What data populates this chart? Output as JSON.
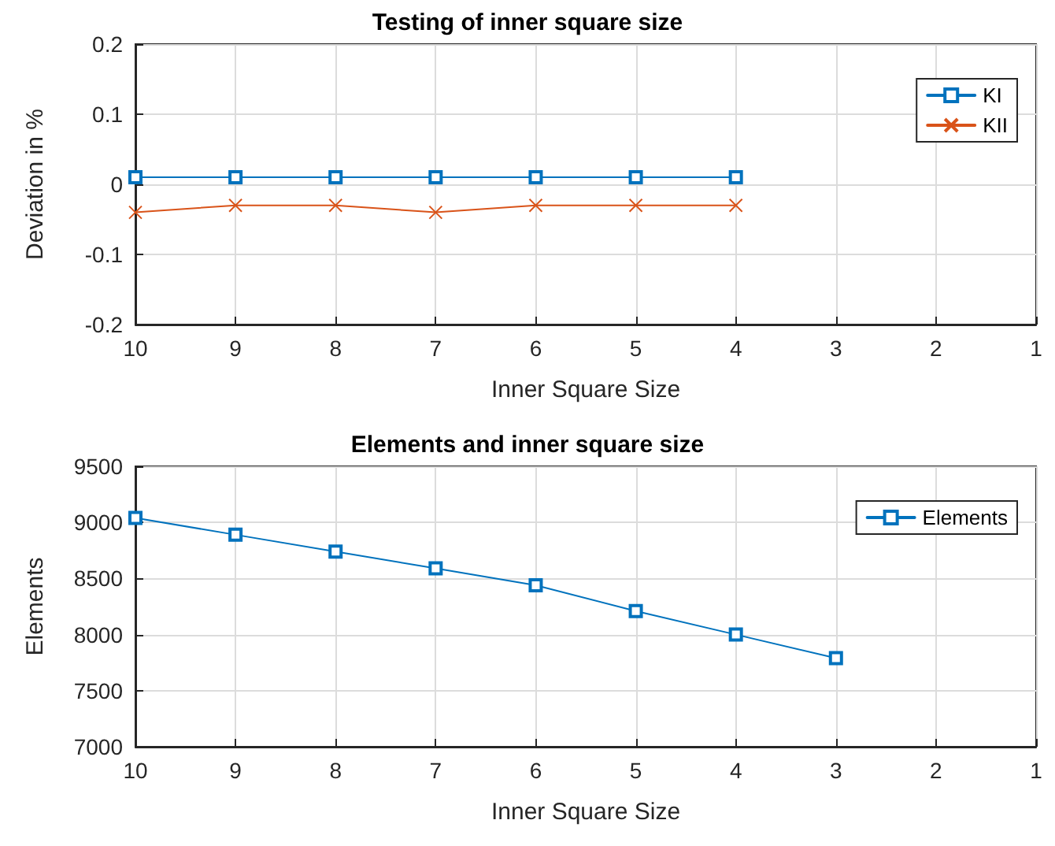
{
  "chart_data": [
    {
      "type": "line",
      "title": "Testing of inner square size",
      "xlabel": "Inner Square Size",
      "ylabel": "Deviation in %",
      "x": [
        10,
        9,
        8,
        7,
        6,
        5,
        4
      ],
      "series": [
        {
          "name": "KI",
          "color": "#0072bd",
          "marker": "square",
          "values": [
            0.01,
            0.01,
            0.01,
            0.01,
            0.01,
            0.01,
            0.01
          ]
        },
        {
          "name": "KII",
          "color": "#d95319",
          "marker": "cross",
          "values": [
            -0.04,
            -0.03,
            -0.03,
            -0.04,
            -0.03,
            -0.03,
            -0.03
          ]
        }
      ],
      "xlim": [
        10,
        1
      ],
      "xticks": [
        10,
        9,
        8,
        7,
        6,
        5,
        4,
        3,
        2,
        1
      ],
      "ylim": [
        -0.2,
        0.2
      ],
      "yticks": [
        -0.2,
        -0.1,
        0,
        0.1,
        0.2
      ],
      "grid": true,
      "legend": "top right"
    },
    {
      "type": "line",
      "title": "Elements and inner square size",
      "xlabel": "Inner Square Size",
      "ylabel": "Elements",
      "x": [
        10,
        9,
        8,
        7,
        6,
        5,
        4,
        3
      ],
      "series": [
        {
          "name": "Elements",
          "color": "#0072bd",
          "marker": "square",
          "values": [
            9040,
            8890,
            8740,
            8590,
            8440,
            8210,
            8000,
            7790
          ]
        }
      ],
      "xlim": [
        10,
        1
      ],
      "xticks": [
        10,
        9,
        8,
        7,
        6,
        5,
        4,
        3,
        2,
        1
      ],
      "ylim": [
        7000,
        9500
      ],
      "yticks": [
        7000,
        7500,
        8000,
        8500,
        9000,
        9500
      ],
      "grid": true,
      "legend": "top right"
    }
  ]
}
